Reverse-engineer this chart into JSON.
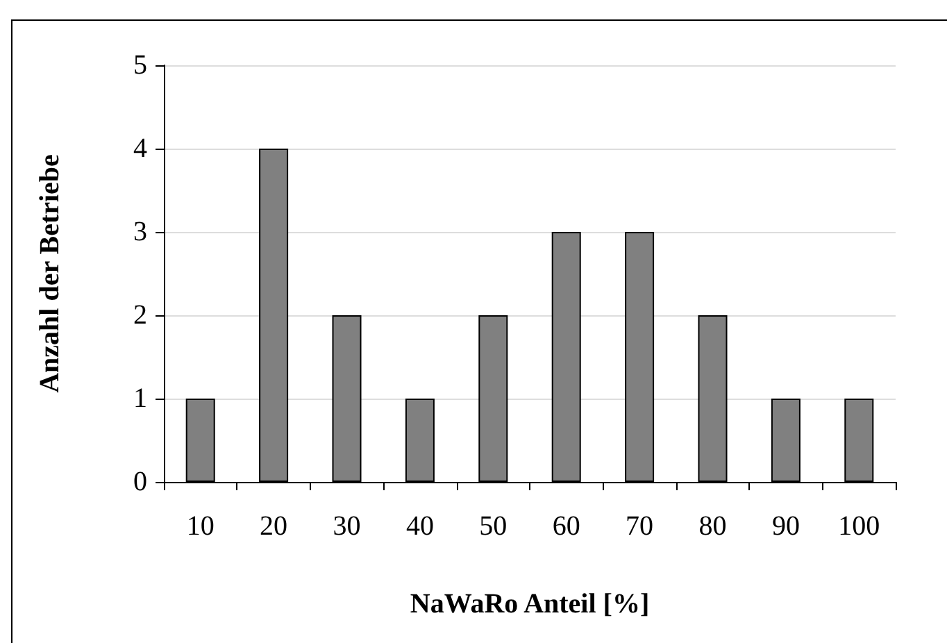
{
  "chart_data": {
    "type": "bar",
    "xlabel": "NaWaRo Anteil [%]",
    "ylabel": "Anzahl der Betriebe",
    "categories": [
      "10",
      "20",
      "30",
      "40",
      "50",
      "60",
      "70",
      "80",
      "90",
      "100"
    ],
    "values": [
      1,
      4,
      2,
      1,
      2,
      3,
      3,
      2,
      1,
      1
    ],
    "color": "#808080",
    "ylim": [
      0,
      5
    ],
    "yticks": [
      0,
      1,
      2,
      3,
      4,
      5
    ],
    "grid": "y"
  }
}
